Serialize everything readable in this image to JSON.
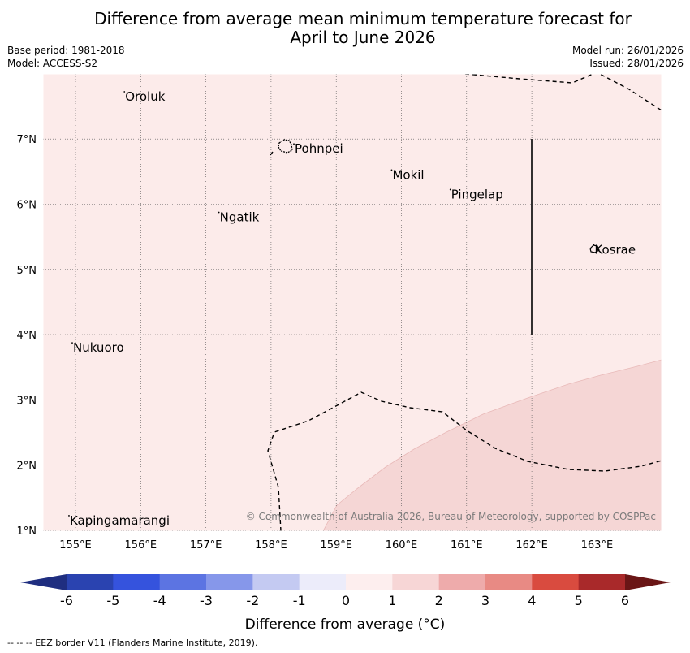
{
  "title_line1": "Difference from average mean minimum temperature forecast for",
  "title_line2": "April to June 2026",
  "base_period": "Base period: 1981-2018",
  "model": "Model: ACCESS-S2",
  "model_run": "Model run: 26/01/2026",
  "issued": "Issued: 28/01/2026",
  "copyright": "© Commonwealth of Australia 2026, Bureau of Meteorology, supported by COSPPac",
  "footnote": "--  --  -- EEZ border V11 (Flanders Marine Institute, 2019).",
  "map": {
    "lon_ticks": [
      155,
      156,
      157,
      158,
      159,
      160,
      161,
      162,
      163
    ],
    "lon_labels": [
      "155°E",
      "156°E",
      "157°E",
      "158°E",
      "159°E",
      "160°E",
      "161°E",
      "162°E",
      "163°E"
    ],
    "lat_ticks": [
      1,
      2,
      3,
      4,
      5,
      6,
      7
    ],
    "lat_labels": [
      "1°N",
      "2°N",
      "3°N",
      "4°N",
      "5°N",
      "6°N",
      "7°N"
    ],
    "islands": [
      {
        "name": "Oroluk",
        "lon": 155.75,
        "lat": 7.65
      },
      {
        "name": "Pohnpei",
        "lon": 158.35,
        "lat": 6.85
      },
      {
        "name": "Mokil",
        "lon": 159.85,
        "lat": 6.45
      },
      {
        "name": "Pingelap",
        "lon": 160.75,
        "lat": 6.15
      },
      {
        "name": "Ngatik",
        "lon": 157.2,
        "lat": 5.8
      },
      {
        "name": "Kosrae",
        "lon": 162.95,
        "lat": 5.3
      },
      {
        "name": "Nukuoro",
        "lon": 154.95,
        "lat": 3.8
      },
      {
        "name": "Kapingamarangi",
        "lon": 154.9,
        "lat": 1.15
      }
    ]
  },
  "colorbar": {
    "label": "Difference from average (°C)",
    "tick_labels": [
      "-6",
      "-5",
      "-4",
      "-3",
      "-2",
      "-1",
      "0",
      "1",
      "2",
      "3",
      "4",
      "5",
      "6"
    ],
    "colors": [
      "#2a43b0",
      "#3553dd",
      "#5c74e2",
      "#8697ea",
      "#c4caf2",
      "#ececfa",
      "#fdeeee",
      "#f7d6d6",
      "#eeabab",
      "#e88a84",
      "#d94b3f",
      "#a9292a"
    ],
    "under_color": "#1f2e80",
    "over_color": "#6a1616"
  },
  "colors": {
    "background_category": "#fcebea",
    "warm_category": "#f5d6d5"
  }
}
